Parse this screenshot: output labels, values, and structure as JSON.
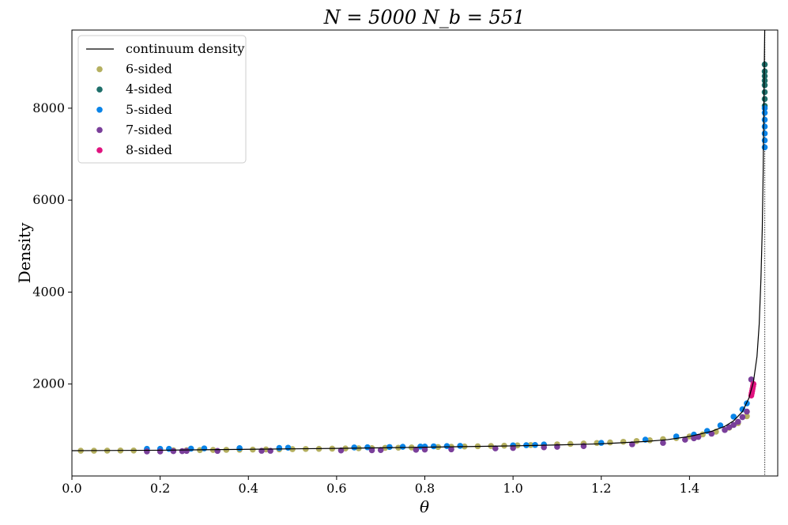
{
  "chart_data": {
    "type": "scatter",
    "title": "N = 5000  N_b = 551",
    "xlabel": "θ",
    "ylabel": "Density",
    "xlim": [
      0.0,
      1.6
    ],
    "ylim": [
      0,
      9700
    ],
    "xticks": [
      0.0,
      0.2,
      0.4,
      0.6,
      0.8,
      1.0,
      1.2,
      1.4
    ],
    "xtick_labels": [
      "0.0",
      "0.2",
      "0.4",
      "0.6",
      "0.8",
      "1.0",
      "1.2",
      "1.4"
    ],
    "yticks": [
      2000,
      4000,
      6000,
      8000
    ],
    "ytick_labels": [
      "2000",
      "4000",
      "6000",
      "8000"
    ],
    "vertical_dotted_line_x": 1.5708,
    "grid": false,
    "legend_position": "top-left",
    "series": [
      {
        "name": "continuum density",
        "kind": "line",
        "color": "#000000",
        "x": [
          0.0,
          0.2,
          0.4,
          0.6,
          0.8,
          1.0,
          1.1,
          1.2,
          1.3,
          1.35,
          1.4,
          1.45,
          1.48,
          1.5,
          1.52,
          1.535,
          1.545,
          1.553,
          1.558,
          1.562,
          1.565,
          1.567,
          1.568,
          1.5695,
          1.5705
        ],
        "y": [
          550,
          560,
          580,
          600,
          625,
          655,
          675,
          700,
          750,
          790,
          860,
          970,
          1080,
          1200,
          1400,
          1700,
          2050,
          2600,
          3300,
          4300,
          5400,
          6600,
          7600,
          8900,
          9700
        ]
      },
      {
        "name": "6-sided",
        "kind": "scatter",
        "color": "#b5b060",
        "x": [
          0.02,
          0.05,
          0.08,
          0.11,
          0.14,
          0.17,
          0.2,
          0.23,
          0.26,
          0.29,
          0.32,
          0.35,
          0.38,
          0.41,
          0.44,
          0.47,
          0.5,
          0.53,
          0.56,
          0.59,
          0.62,
          0.65,
          0.68,
          0.71,
          0.74,
          0.77,
          0.8,
          0.83,
          0.86,
          0.89,
          0.92,
          0.95,
          0.98,
          1.01,
          1.04,
          1.07,
          1.1,
          1.13,
          1.16,
          1.19,
          1.22,
          1.25,
          1.28,
          1.31,
          1.34,
          1.37,
          1.4,
          1.43,
          1.46,
          1.49,
          1.51,
          1.53
        ],
        "y": [
          550,
          550,
          552,
          553,
          554,
          556,
          557,
          559,
          561,
          563,
          566,
          568,
          571,
          574,
          577,
          580,
          583,
          587,
          590,
          594,
          598,
          602,
          606,
          611,
          615,
          620,
          625,
          630,
          636,
          641,
          647,
          653,
          659,
          666,
          673,
          680,
          688,
          697,
          707,
          718,
          730,
          744,
          760,
          778,
          800,
          825,
          860,
          905,
          965,
          1050,
          1150,
          1300
        ]
      },
      {
        "name": "4-sided",
        "kind": "scatter",
        "color": "#1f6f6a",
        "x": [
          1.5705,
          1.5705,
          1.5705,
          1.5705,
          1.5705,
          1.5705,
          1.5705,
          1.5705
        ],
        "y": [
          8050,
          8200,
          8350,
          8500,
          8600,
          8700,
          8800,
          8950
        ]
      },
      {
        "name": "5-sided",
        "kind": "scatter",
        "color": "#0a84e8",
        "x": [
          0.17,
          0.2,
          0.22,
          0.27,
          0.3,
          0.38,
          0.47,
          0.49,
          0.64,
          0.67,
          0.72,
          0.75,
          0.79,
          0.8,
          0.82,
          0.85,
          0.88,
          1.0,
          1.03,
          1.05,
          1.07,
          1.2,
          1.3,
          1.37,
          1.41,
          1.44,
          1.47,
          1.5,
          1.52,
          1.53,
          1.5705,
          1.5705,
          1.5705,
          1.5705,
          1.5705,
          1.5705,
          1.5705
        ],
        "y": [
          590,
          590,
          590,
          595,
          600,
          605,
          610,
          615,
          620,
          625,
          630,
          635,
          640,
          640,
          645,
          650,
          655,
          665,
          670,
          675,
          685,
          720,
          790,
          860,
          900,
          980,
          1100,
          1290,
          1450,
          1580,
          7150,
          7300,
          7450,
          7600,
          7750,
          7900,
          8000
        ]
      },
      {
        "name": "7-sided",
        "kind": "scatter",
        "color": "#7a3f9a",
        "x": [
          0.17,
          0.2,
          0.23,
          0.25,
          0.26,
          0.33,
          0.43,
          0.45,
          0.61,
          0.68,
          0.7,
          0.78,
          0.8,
          0.86,
          0.96,
          1.0,
          1.07,
          1.1,
          1.16,
          1.27,
          1.34,
          1.39,
          1.41,
          1.42,
          1.45,
          1.48,
          1.49,
          1.5,
          1.51,
          1.52,
          1.53,
          1.54
        ],
        "y": [
          535,
          535,
          540,
          540,
          545,
          545,
          548,
          548,
          555,
          560,
          565,
          570,
          575,
          580,
          600,
          610,
          625,
          635,
          650,
          690,
          720,
          790,
          820,
          850,
          920,
          1000,
          1060,
          1110,
          1180,
          1280,
          1400,
          2100
        ]
      },
      {
        "name": "8-sided",
        "kind": "scatter",
        "color": "#e0137f",
        "x": [
          1.54,
          1.541,
          1.542,
          1.543,
          1.544,
          1.545
        ],
        "y": [
          1750,
          1800,
          1850,
          1900,
          1950,
          2000
        ]
      }
    ]
  }
}
